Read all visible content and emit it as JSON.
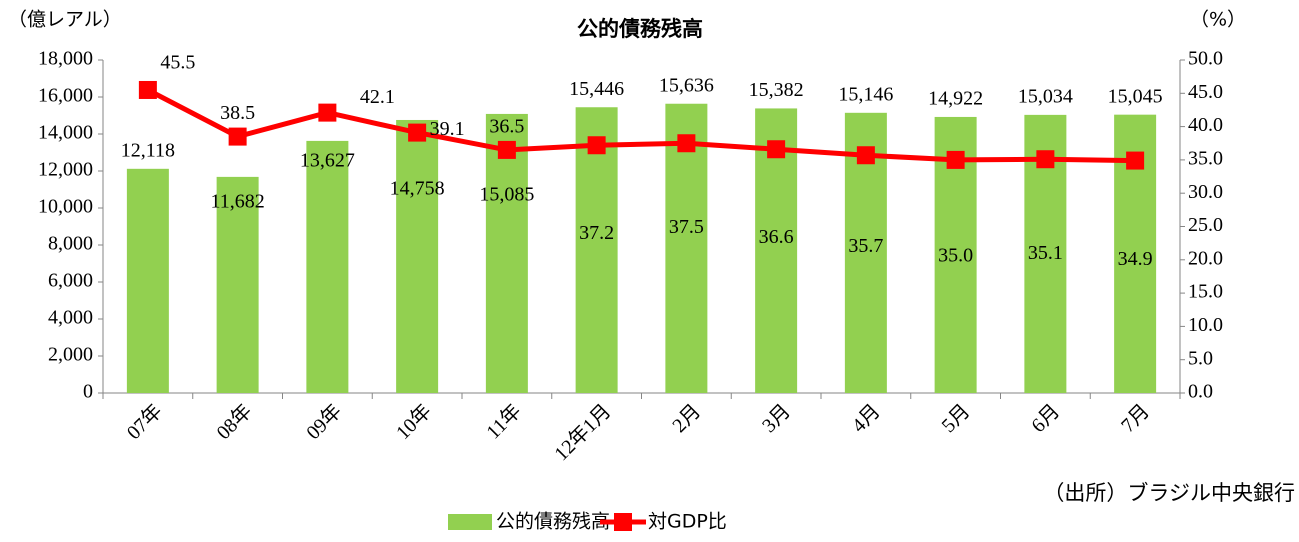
{
  "chart_data": {
    "type": "bar-line",
    "title": "公的債務残高",
    "y_unit_label": "（億レアル）",
    "y2_unit_label": "（%）",
    "source": "（出所）ブラジル中央銀行",
    "categories": [
      "07年",
      "08年",
      "09年",
      "10年",
      "11年",
      "12年1月",
      "2月",
      "3月",
      "4月",
      "5月",
      "6月",
      "7月"
    ],
    "series": [
      {
        "name": "公的債務残高",
        "color": "#92d050",
        "values": [
          12118,
          11682,
          13627,
          14758,
          15085,
          15446,
          15636,
          15382,
          15146,
          14922,
          15034,
          15045
        ],
        "value_labels": [
          "12,118",
          "11,682",
          "13,627",
          "14,758",
          "15,085",
          "15,446",
          "15,636",
          "15,382",
          "15,146",
          "14,922",
          "15,034",
          "15,045"
        ]
      },
      {
        "name": "対GDP比",
        "color": "#ff0000",
        "axis": "y2",
        "values": [
          45.5,
          38.5,
          42.1,
          39.1,
          36.5,
          37.2,
          37.5,
          36.6,
          35.7,
          35.0,
          35.1,
          34.9
        ],
        "value_labels": [
          "45.5",
          "38.5",
          "42.1",
          "39.1",
          "36.5",
          "37.2",
          "37.5",
          "36.6",
          "35.7",
          "35.0",
          "35.1",
          "34.9"
        ]
      }
    ],
    "ylim": [
      0,
      18000
    ],
    "yticks": [
      0,
      {
        "value": 2000,
        "label": "2,000"
      },
      {
        "value": 4000,
        "label": "4,000"
      },
      {
        "value": 6000,
        "label": "6,000"
      },
      {
        "value": 8000,
        "label": "8,000"
      },
      {
        "value": 10000,
        "label": "10,000"
      },
      {
        "value": 12000,
        "label": "12,000"
      },
      {
        "value": 14000,
        "label": "14,000"
      },
      {
        "value": 16000,
        "label": "16,000"
      },
      {
        "value": 18000,
        "label": "18,000"
      }
    ],
    "y2lim": [
      0,
      50
    ],
    "y2ticks": [
      {
        "value": 0,
        "label": "0.0"
      },
      {
        "value": 5,
        "label": "5.0"
      },
      {
        "value": 10,
        "label": "10.0"
      },
      {
        "value": 15,
        "label": "15.0"
      },
      {
        "value": 20,
        "label": "20.0"
      },
      {
        "value": 25,
        "label": "25.0"
      },
      {
        "value": 30,
        "label": "30.0"
      },
      {
        "value": 35,
        "label": "35.0"
      },
      {
        "value": 40,
        "label": "40.0"
      },
      {
        "value": 45,
        "label": "45.0"
      },
      {
        "value": 50,
        "label": "50.0"
      }
    ],
    "legend": "bottom"
  }
}
